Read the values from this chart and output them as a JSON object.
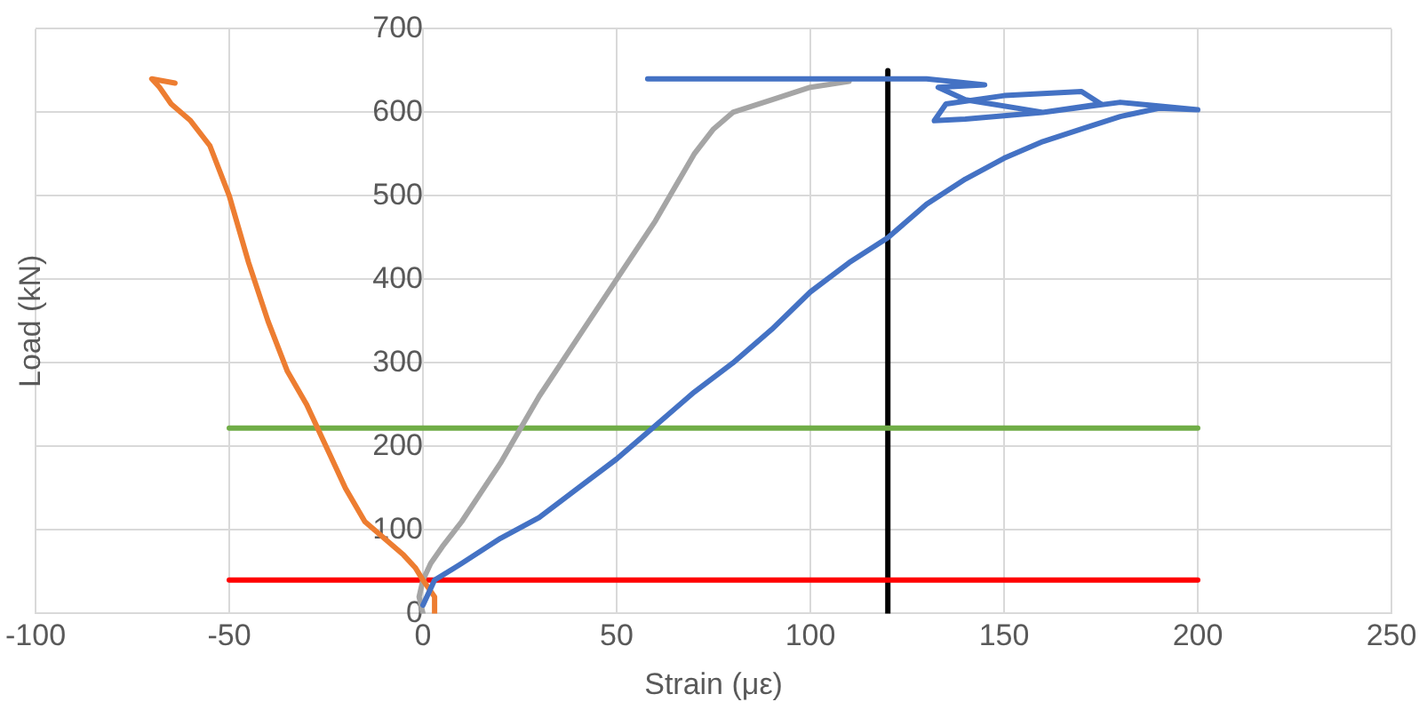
{
  "chart_data": {
    "type": "line",
    "xlabel": "Strain (με)",
    "ylabel": "Load (kN)",
    "xlim": [
      -100,
      250
    ],
    "xticks": [
      -100,
      -50,
      0,
      50,
      100,
      150,
      200,
      250
    ],
    "ylim": [
      0,
      700
    ],
    "yticks": [
      0,
      100,
      200,
      300,
      400,
      500,
      600,
      700
    ],
    "grid": true,
    "legend": false,
    "marker": "none",
    "line_style": "solid",
    "series": [
      {
        "color": "#4472c4",
        "x": [
          0,
          3,
          10,
          20,
          30,
          40,
          50,
          60,
          70,
          80,
          90,
          100,
          110,
          120,
          130,
          140,
          150,
          160,
          170,
          180,
          190,
          200,
          180,
          160,
          140,
          132,
          135,
          150,
          170,
          175,
          160,
          140,
          133,
          145,
          130,
          120,
          100,
          58
        ],
        "values": [
          10,
          40,
          60,
          90,
          115,
          150,
          185,
          225,
          265,
          300,
          340,
          385,
          420,
          450,
          490,
          520,
          545,
          565,
          580,
          595,
          605,
          603,
          612,
          600,
          592,
          590,
          610,
          620,
          625,
          610,
          600,
          615,
          630,
          633,
          640,
          640,
          640,
          640
        ]
      },
      {
        "color": "#ed7d31",
        "x": [
          3,
          3,
          0,
          -2,
          -5,
          -10,
          -15,
          -20,
          -25,
          -30,
          -35,
          -40,
          -45,
          -50,
          -55,
          -60,
          -65,
          -68,
          -70,
          -64
        ],
        "values": [
          0,
          20,
          40,
          55,
          70,
          90,
          110,
          150,
          200,
          250,
          290,
          350,
          420,
          500,
          560,
          590,
          610,
          630,
          640,
          635
        ]
      },
      {
        "color": "#a5a5a5",
        "x": [
          0,
          -1,
          0,
          2,
          5,
          10,
          20,
          25,
          30,
          40,
          50,
          60,
          70,
          75,
          80,
          90,
          100,
          110
        ],
        "values": [
          0,
          20,
          40,
          60,
          80,
          110,
          180,
          220,
          260,
          330,
          400,
          470,
          550,
          580,
          600,
          615,
          630,
          637
        ]
      },
      {
        "color": "#70ad47",
        "x": [
          -50,
          200
        ],
        "values": [
          222,
          222
        ]
      },
      {
        "color": "#ff0000",
        "x": [
          -50,
          200
        ],
        "values": [
          40,
          40
        ]
      },
      {
        "color": "#000000",
        "x": [
          120,
          120
        ],
        "values": [
          0,
          650
        ]
      }
    ]
  }
}
